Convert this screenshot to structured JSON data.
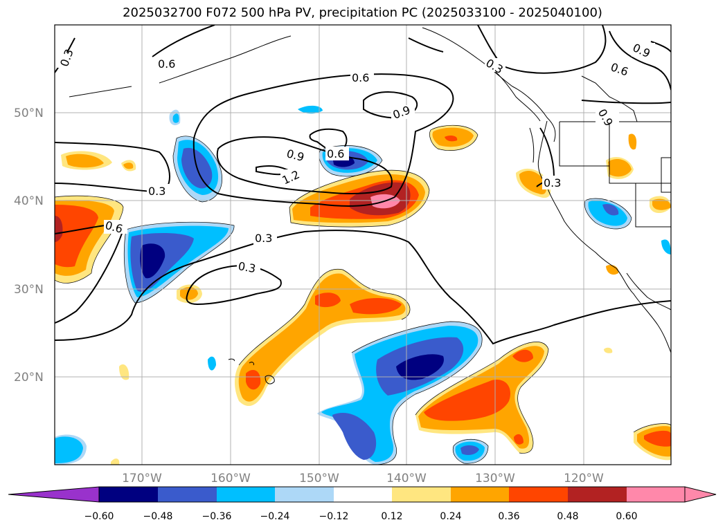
{
  "title": "2025032700 F072 500 hPa PV, precipitation PC (2025033100 - 2025040100)",
  "map": {
    "lon_labels": [
      "170°W",
      "160°W",
      "150°W",
      "140°W",
      "130°W",
      "120°W"
    ],
    "lat_labels": [
      "50°N",
      "40°N",
      "30°N",
      "20°N"
    ],
    "pv_contour_labels": [
      "0.3",
      "0.6",
      "0.6",
      "0.9",
      "0.6",
      "0.9",
      "0.3",
      "0.6",
      "0.9",
      "0.9",
      "1.2",
      "0.3",
      "0.6",
      "0.3",
      "0.3",
      "0.3"
    ],
    "colors": {
      "neg_060": "#9932cc",
      "neg_048": "#000080",
      "neg_036": "#3a5bcc",
      "neg_024": "#00bfff",
      "neg_012": "#add8f7",
      "zero": "#ffffff",
      "pos_012": "#ffe680",
      "pos_024": "#ffa500",
      "pos_036": "#ff4500",
      "pos_048": "#b22222",
      "pos_060": "#ff88aa"
    }
  },
  "colorbar": {
    "tick_labels": [
      "−0.60",
      "−0.48",
      "−0.36",
      "−0.24",
      "−0.12",
      "0.12",
      "0.24",
      "0.36",
      "0.48",
      "0.60"
    ]
  }
}
